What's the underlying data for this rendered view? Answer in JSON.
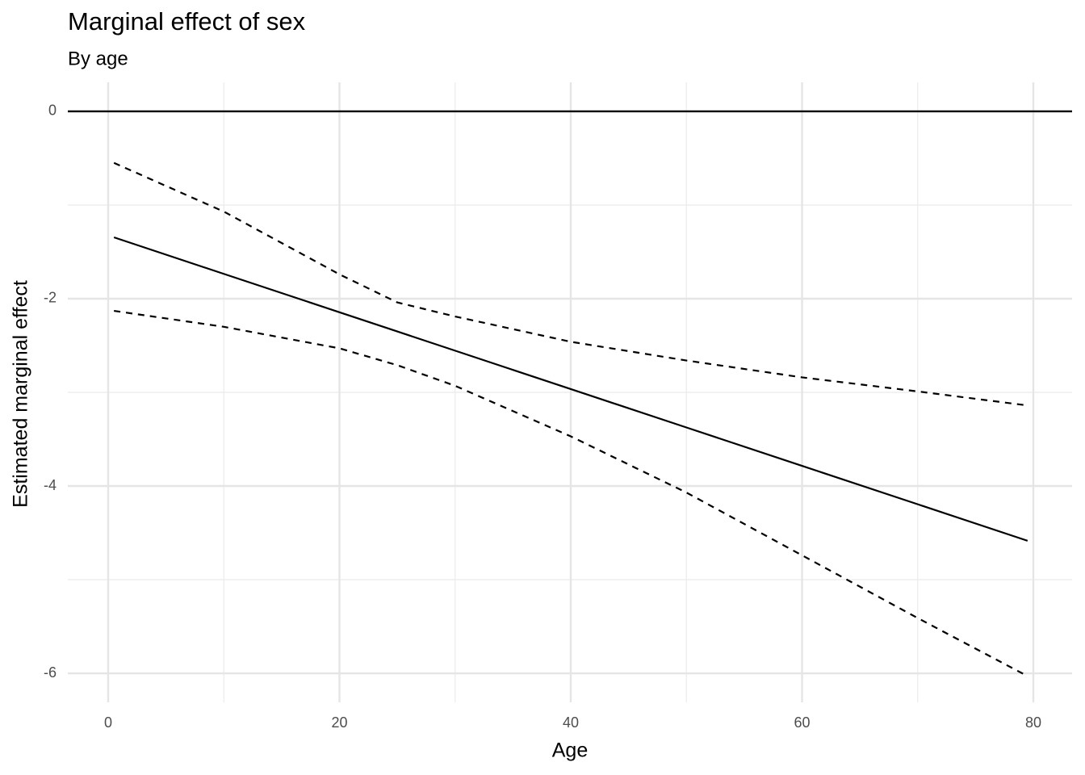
{
  "chart_data": {
    "type": "line",
    "title": "Marginal effect of sex",
    "subtitle": "By age",
    "xlabel": "Age",
    "ylabel": "Estimated marginal effect",
    "x": [
      0.5,
      10,
      20,
      25,
      30,
      40,
      50,
      60,
      70,
      79.5
    ],
    "series": [
      {
        "color": "#000000",
        "dashed": false,
        "values": [
          -1.345,
          -1.735,
          -2.145,
          -2.35,
          -2.555,
          -2.965,
          -3.375,
          -3.785,
          -4.195,
          -4.585
        ]
      },
      {
        "color": "#000000",
        "dashed": true,
        "values": [
          -0.55,
          -1.07,
          -1.74,
          -2.04,
          -2.19,
          -2.46,
          -2.66,
          -2.84,
          -2.99,
          -3.14
        ]
      },
      {
        "color": "#000000",
        "dashed": true,
        "values": [
          -2.13,
          -2.3,
          -2.53,
          -2.71,
          -2.93,
          -3.47,
          -4.07,
          -4.74,
          -5.41,
          -6.03
        ]
      }
    ],
    "xlim": [
      -3.49,
      83.35
    ],
    "ylim": [
      -6.31,
      0.31
    ],
    "xticks": [
      0,
      20,
      40,
      60,
      80
    ],
    "yticks": [
      0,
      -2,
      -4,
      -6
    ],
    "xminor": [
      10,
      30,
      50,
      70
    ],
    "yminor": [
      -1,
      -3,
      -5
    ],
    "hline": 0,
    "grid": true
  }
}
